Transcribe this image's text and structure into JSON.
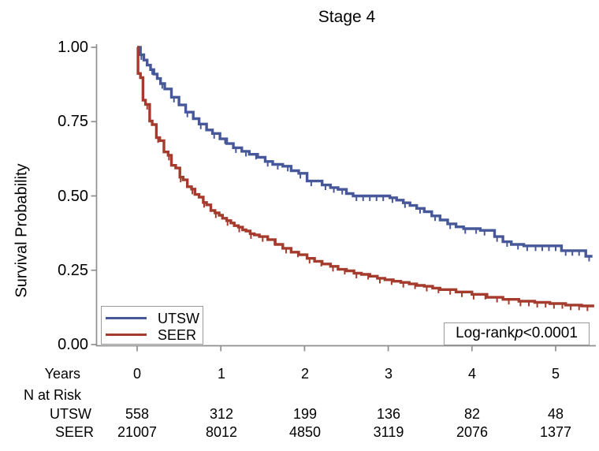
{
  "title": "Stage 4",
  "yaxis": {
    "label": "Survival Probability",
    "ticks": [
      "1.00",
      "0.75",
      "0.50",
      "0.25",
      "0.00"
    ]
  },
  "xaxis": {
    "ticks": [
      "0",
      "1",
      "2",
      "3",
      "4",
      "5"
    ]
  },
  "legend": {
    "items": [
      {
        "label": "UTSW",
        "color": "#47589a"
      },
      {
        "label": "SEER",
        "color": "#a43b2c"
      }
    ]
  },
  "pvalue": {
    "prefix": "Log-rank",
    "pvar": "p",
    "value": "<0.0001"
  },
  "risk_table": {
    "years_label": "Years",
    "n_at_risk_label": "N at Risk",
    "rows": [
      {
        "label": "UTSW",
        "values": [
          "558",
          "312",
          "199",
          "136",
          "82",
          "48"
        ]
      },
      {
        "label": "SEER",
        "values": [
          "21007",
          "8012",
          "4850",
          "3119",
          "2076",
          "1377"
        ]
      }
    ]
  },
  "chart_data": {
    "type": "line",
    "subtype": "kaplan-meier-step",
    "title": "Stage 4",
    "xlabel": "Years",
    "ylabel": "Survival Probability",
    "xlim": [
      0,
      5.47
    ],
    "ylim": [
      0,
      1
    ],
    "grid": false,
    "legend_position": "bottom-left-inside",
    "annotation": "Log-rank p<0.0001",
    "series": [
      {
        "name": "UTSW",
        "color": "#47589a",
        "tmax": 5.44,
        "points": [
          [
            0,
            1.0
          ],
          [
            0.04,
            0.975
          ],
          [
            0.08,
            0.957
          ],
          [
            0.12,
            0.94
          ],
          [
            0.16,
            0.925
          ],
          [
            0.2,
            0.91
          ],
          [
            0.24,
            0.895
          ],
          [
            0.28,
            0.878
          ],
          [
            0.33,
            0.86
          ],
          [
            0.41,
            0.832
          ],
          [
            0.5,
            0.806
          ],
          [
            0.58,
            0.782
          ],
          [
            0.67,
            0.76
          ],
          [
            0.74,
            0.742
          ],
          [
            0.83,
            0.722
          ],
          [
            0.9,
            0.71
          ],
          [
            0.99,
            0.692
          ],
          [
            1.07,
            0.676
          ],
          [
            1.15,
            0.662
          ],
          [
            1.25,
            0.65
          ],
          [
            1.34,
            0.64
          ],
          [
            1.44,
            0.63
          ],
          [
            1.53,
            0.616
          ],
          [
            1.62,
            0.606
          ],
          [
            1.74,
            0.6
          ],
          [
            1.84,
            0.585
          ],
          [
            1.93,
            0.576
          ],
          [
            2.03,
            0.55
          ],
          [
            2.21,
            0.537
          ],
          [
            2.31,
            0.528
          ],
          [
            2.4,
            0.522
          ],
          [
            2.5,
            0.508
          ],
          [
            2.58,
            0.5
          ],
          [
            3.02,
            0.494
          ],
          [
            3.1,
            0.486
          ],
          [
            3.18,
            0.477
          ],
          [
            3.26,
            0.468
          ],
          [
            3.34,
            0.458
          ],
          [
            3.43,
            0.447
          ],
          [
            3.52,
            0.433
          ],
          [
            3.62,
            0.419
          ],
          [
            3.71,
            0.406
          ],
          [
            3.81,
            0.396
          ],
          [
            3.9,
            0.39
          ],
          [
            4.1,
            0.384
          ],
          [
            4.27,
            0.363
          ],
          [
            4.37,
            0.346
          ],
          [
            4.47,
            0.337
          ],
          [
            4.62,
            0.332
          ],
          [
            5.07,
            0.316
          ],
          [
            5.36,
            0.297
          ]
        ],
        "censor_t": [
          0.05,
          0.18,
          0.3,
          0.44,
          0.6,
          0.76,
          0.92,
          1.05,
          1.18,
          1.3,
          1.42,
          1.56,
          1.68,
          1.8,
          1.95,
          2.08,
          2.25,
          2.35,
          2.45,
          2.62,
          2.7,
          2.78,
          2.86,
          2.94,
          3.05,
          3.2,
          3.38,
          3.56,
          3.74,
          3.92,
          4.05,
          4.15,
          4.3,
          4.42,
          4.55,
          4.66,
          4.76,
          4.84,
          4.92,
          5.0,
          5.12,
          5.2,
          5.28,
          5.4
        ]
      },
      {
        "name": "SEER",
        "color": "#a43b2c",
        "tmax": 5.46,
        "points": [
          [
            0,
            1.0
          ],
          [
            0.01,
            0.912
          ],
          [
            0.04,
            0.898
          ],
          [
            0.07,
            0.822
          ],
          [
            0.1,
            0.808
          ],
          [
            0.15,
            0.752
          ],
          [
            0.18,
            0.74
          ],
          [
            0.23,
            0.696
          ],
          [
            0.27,
            0.686
          ],
          [
            0.32,
            0.648
          ],
          [
            0.37,
            0.637
          ],
          [
            0.41,
            0.603
          ],
          [
            0.46,
            0.594
          ],
          [
            0.51,
            0.563
          ],
          [
            0.55,
            0.554
          ],
          [
            0.6,
            0.531
          ],
          [
            0.65,
            0.523
          ],
          [
            0.69,
            0.505
          ],
          [
            0.74,
            0.496
          ],
          [
            0.79,
            0.478
          ],
          [
            0.83,
            0.47
          ],
          [
            0.88,
            0.451
          ],
          [
            0.93,
            0.443
          ],
          [
            0.98,
            0.435
          ],
          [
            1.02,
            0.425
          ],
          [
            1.07,
            0.417
          ],
          [
            1.12,
            0.409
          ],
          [
            1.16,
            0.4
          ],
          [
            1.21,
            0.395
          ],
          [
            1.26,
            0.386
          ],
          [
            1.3,
            0.382
          ],
          [
            1.35,
            0.373
          ],
          [
            1.4,
            0.369
          ],
          [
            1.46,
            0.363
          ],
          [
            1.56,
            0.353
          ],
          [
            1.65,
            0.337
          ],
          [
            1.74,
            0.324
          ],
          [
            1.84,
            0.311
          ],
          [
            1.93,
            0.302
          ],
          [
            2.03,
            0.29
          ],
          [
            2.12,
            0.28
          ],
          [
            2.21,
            0.271
          ],
          [
            2.31,
            0.263
          ],
          [
            2.4,
            0.253
          ],
          [
            2.5,
            0.248
          ],
          [
            2.59,
            0.24
          ],
          [
            2.68,
            0.236
          ],
          [
            2.78,
            0.23
          ],
          [
            2.87,
            0.223
          ],
          [
            2.96,
            0.218
          ],
          [
            3.06,
            0.213
          ],
          [
            3.15,
            0.209
          ],
          [
            3.25,
            0.204
          ],
          [
            3.34,
            0.199
          ],
          [
            3.43,
            0.196
          ],
          [
            3.53,
            0.19
          ],
          [
            3.62,
            0.185
          ],
          [
            3.81,
            0.177
          ],
          [
            4.0,
            0.169
          ],
          [
            4.18,
            0.159
          ],
          [
            4.37,
            0.152
          ],
          [
            4.56,
            0.146
          ],
          [
            4.75,
            0.142
          ],
          [
            4.93,
            0.138
          ],
          [
            5.12,
            0.133
          ],
          [
            5.31,
            0.13
          ]
        ],
        "censor_t": [
          0.12,
          0.25,
          0.38,
          0.52,
          0.66,
          0.8,
          0.94,
          1.08,
          1.22,
          1.36,
          1.5,
          1.64,
          1.78,
          1.92,
          2.06,
          2.2,
          2.34,
          2.48,
          2.62,
          2.76,
          2.9,
          3.04,
          3.18,
          3.32,
          3.46,
          3.6,
          3.74,
          3.88,
          4.02,
          4.16,
          4.3,
          4.44,
          4.58,
          4.68,
          4.78,
          4.88,
          4.98,
          5.08,
          5.18,
          5.28,
          5.38
        ]
      }
    ],
    "risk_table": {
      "times": [
        0,
        1,
        2,
        3,
        4,
        5
      ],
      "UTSW": [
        558,
        312,
        199,
        136,
        82,
        48
      ],
      "SEER": [
        21007,
        8012,
        4850,
        3119,
        2076,
        1377
      ]
    }
  }
}
